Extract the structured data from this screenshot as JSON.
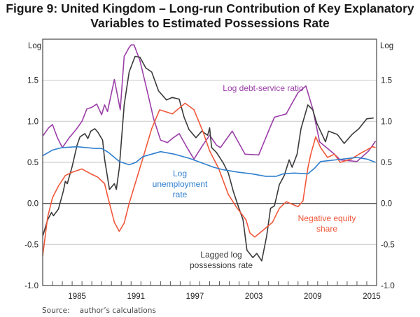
{
  "title_line1": "Figure 9: United Kingdom – Long-run Contribution of Key Explanatory",
  "title_line2": "Variables to Estimated Possessions Rate",
  "source_label": "Source:",
  "source_text": "author’s calculations",
  "chart_data": {
    "type": "line",
    "title": "Figure 9: United Kingdom – Long-run Contribution of Key Explanatory Variables to Estimated Possessions Rate",
    "xlabel": "",
    "ylabel_left": "Log",
    "ylabel_right": "Log",
    "xlim": [
      1982,
      2016
    ],
    "ylim": [
      -1.0,
      2.0
    ],
    "yticks": [
      -1.0,
      -0.5,
      0.0,
      0.5,
      1.0,
      1.5
    ],
    "ytick_labels": [
      "-1.0",
      "-0.5",
      "0.0",
      "0.5",
      "1.0",
      "1.5"
    ],
    "xtick_labels": [
      "1985",
      "1991",
      "1997",
      "2003",
      "2009",
      "2015"
    ],
    "xtick_years": [
      1985,
      1991,
      1997,
      2003,
      2009,
      2015
    ],
    "grid": true,
    "legend": "inline labels",
    "series": [
      {
        "name": "Log debt-service ratio",
        "label_lines": [
          "Log debt-service ratio"
        ],
        "color": "#9b3fa8",
        "x": [
          1982.0,
          1982.6,
          1983.0,
          1983.5,
          1984.0,
          1984.7,
          1985.4,
          1986.0,
          1986.5,
          1987.0,
          1987.5,
          1988.0,
          1988.3,
          1988.6,
          1989.3,
          1989.9,
          1990.3,
          1990.8,
          1991.0,
          1991.3,
          1991.9,
          1992.6,
          1993.3,
          1994.0,
          1994.7,
          1995.3,
          1995.9,
          1996.7,
          1997.4,
          1998.3,
          1999.0,
          1999.7,
          2000.1,
          2001.3,
          2002.6,
          2004.0,
          2005.2,
          2005.6,
          2006.8,
          2007.3,
          2008.0,
          2008.8,
          2009.5,
          2010.2,
          2011.6,
          2012.3,
          2014.0,
          2015.2,
          2015.9
        ],
        "values": [
          0.82,
          0.92,
          0.96,
          0.8,
          0.68,
          0.8,
          0.9,
          1.0,
          1.15,
          1.17,
          1.21,
          1.08,
          1.2,
          1.12,
          1.51,
          1.14,
          1.79,
          1.9,
          1.93,
          1.93,
          1.74,
          1.39,
          1.03,
          0.77,
          0.74,
          0.8,
          0.85,
          0.68,
          0.54,
          0.71,
          0.83,
          0.71,
          0.68,
          0.88,
          0.6,
          0.59,
          0.94,
          1.05,
          1.09,
          1.2,
          1.35,
          1.43,
          1.15,
          0.75,
          0.61,
          0.53,
          0.51,
          0.64,
          0.76
        ]
      },
      {
        "name": "Lagged log possessions rate",
        "label_lines": [
          "Lagged log",
          "possessions rate"
        ],
        "color": "#3a3a3a",
        "x": [
          1982.0,
          1982.5,
          1982.9,
          1983.1,
          1983.6,
          1984.1,
          1984.3,
          1984.5,
          1985.0,
          1985.5,
          1985.8,
          1986.3,
          1986.6,
          1986.9,
          1987.3,
          1987.6,
          1988.1,
          1988.3,
          1988.8,
          1989.3,
          1989.5,
          1989.8,
          1990.3,
          1990.8,
          1991.4,
          1991.9,
          1992.5,
          1993.1,
          1993.8,
          1994.6,
          1995.2,
          1995.9,
          1996.4,
          1996.9,
          1997.6,
          1998.2,
          1998.8,
          1999.0,
          1999.2,
          1999.7,
          2000.4,
          2000.9,
          2001.4,
          2001.9,
          2002.4,
          2002.8,
          2003.4,
          2003.8,
          2004.3,
          2004.8,
          2005.2,
          2005.6,
          2006.1,
          2006.6,
          2007.1,
          2007.4,
          2007.9,
          2008.3,
          2009.0,
          2009.5,
          2009.9,
          2010.8,
          2011.1,
          2012.0,
          2012.7,
          2013.5,
          2014.2,
          2015.0,
          2015.7
        ],
        "values": [
          -0.4,
          -0.2,
          -0.11,
          -0.15,
          -0.07,
          0.15,
          0.27,
          0.24,
          0.45,
          0.71,
          0.81,
          0.85,
          0.79,
          0.88,
          0.91,
          0.87,
          0.77,
          0.54,
          0.17,
          0.24,
          0.17,
          0.43,
          1.2,
          1.6,
          1.79,
          1.78,
          1.65,
          1.6,
          1.37,
          1.26,
          1.29,
          1.27,
          1.05,
          0.9,
          0.8,
          0.88,
          0.83,
          0.92,
          0.68,
          0.62,
          0.49,
          0.37,
          0.15,
          -0.03,
          -0.2,
          -0.57,
          -0.66,
          -0.61,
          -0.7,
          -0.4,
          -0.06,
          -0.03,
          0.23,
          0.34,
          0.53,
          0.44,
          0.6,
          0.91,
          1.2,
          1.14,
          0.98,
          0.75,
          0.88,
          0.84,
          0.73,
          0.84,
          0.91,
          1.03,
          1.04
        ]
      },
      {
        "name": "Negative equity share",
        "label_lines": [
          "Negative equity",
          "share"
        ],
        "color": "#f0583a",
        "x": [
          1982.0,
          1982.5,
          1983.0,
          1983.6,
          1984.3,
          1985.0,
          1986.0,
          1986.9,
          1987.6,
          1988.3,
          1988.8,
          1989.3,
          1989.8,
          1990.3,
          1990.8,
          1992.1,
          1993.1,
          1993.9,
          1995.2,
          1996.5,
          1997.4,
          1998.3,
          1999.0,
          1999.9,
          2000.9,
          2001.7,
          2002.7,
          2003.1,
          2003.6,
          2004.5,
          2005.4,
          2006.1,
          2006.8,
          2008.0,
          2008.5,
          2009.0,
          2009.3,
          2009.8,
          2010.3,
          2011.0,
          2011.7,
          2012.3,
          2013.4,
          2014.5,
          2015.6,
          2015.9
        ],
        "values": [
          -0.64,
          -0.17,
          0.07,
          0.21,
          0.34,
          0.38,
          0.42,
          0.36,
          0.32,
          0.24,
          0.0,
          -0.23,
          -0.34,
          -0.24,
          0.0,
          0.51,
          0.91,
          1.14,
          1.09,
          1.22,
          1.14,
          0.88,
          0.64,
          0.43,
          0.11,
          -0.04,
          -0.2,
          -0.36,
          -0.41,
          -0.32,
          -0.23,
          -0.06,
          0.02,
          -0.04,
          0.03,
          0.43,
          0.6,
          0.81,
          0.68,
          0.56,
          0.6,
          0.5,
          0.54,
          0.62,
          0.69,
          0.68
        ]
      },
      {
        "name": "Log unemployment rate",
        "label_lines": [
          "Log",
          "unemployment",
          "rate"
        ],
        "color": "#2f7fcf",
        "x": [
          1982.0,
          1983.0,
          1984.0,
          1985.5,
          1987.3,
          1988.0,
          1988.7,
          1989.8,
          1990.8,
          1991.5,
          1992.2,
          1994.0,
          1995.4,
          1996.9,
          1998.3,
          1999.4,
          2000.4,
          2001.9,
          2003.3,
          2004.7,
          2005.8,
          2006.5,
          2007.6,
          2009.0,
          2009.7,
          2010.3,
          2011.8,
          2014.0,
          2015.0,
          2015.9
        ],
        "values": [
          0.58,
          0.65,
          0.68,
          0.69,
          0.67,
          0.67,
          0.62,
          0.51,
          0.47,
          0.5,
          0.57,
          0.63,
          0.6,
          0.55,
          0.49,
          0.44,
          0.41,
          0.38,
          0.36,
          0.33,
          0.33,
          0.36,
          0.37,
          0.36,
          0.43,
          0.51,
          0.53,
          0.56,
          0.54,
          0.5
        ]
      }
    ]
  }
}
